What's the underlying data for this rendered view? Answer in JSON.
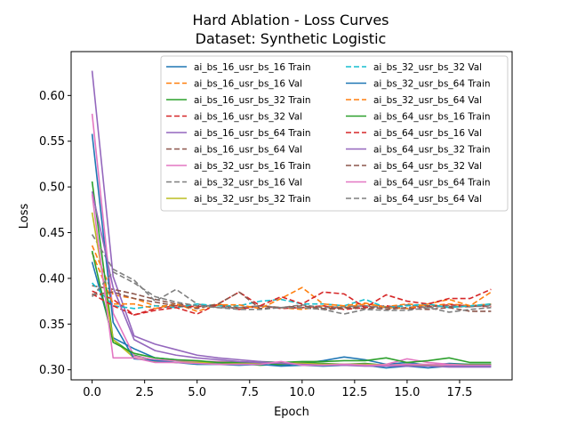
{
  "chart_data": {
    "type": "line",
    "title": "Hard Ablation - Loss Curves",
    "subtitle": "Dataset: Synthetic Logistic",
    "xlabel": "Epoch",
    "ylabel": "Loss",
    "xlim": [
      -1,
      20
    ],
    "ylim": [
      0.289,
      0.648
    ],
    "xticks": [
      0.0,
      2.5,
      5.0,
      7.5,
      10.0,
      12.5,
      15.0,
      17.5
    ],
    "xtick_labels": [
      "0.0",
      "2.5",
      "5.0",
      "7.5",
      "10.0",
      "12.5",
      "15.0",
      "17.5"
    ],
    "yticks": [
      0.3,
      0.35,
      0.4,
      0.45,
      0.5,
      0.55,
      0.6
    ],
    "ytick_labels": [
      "0.30",
      "0.35",
      "0.40",
      "0.45",
      "0.50",
      "0.55",
      "0.60"
    ],
    "grid": false,
    "legend_position": "top-right",
    "x": [
      0,
      1,
      2,
      3,
      4,
      5,
      6,
      7,
      8,
      9,
      10,
      11,
      12,
      13,
      14,
      15,
      16,
      17,
      18,
      19
    ],
    "series": [
      {
        "name": "ai_bs_16_usr_bs_16 Train",
        "color": "#1f77b4",
        "dash": "solid",
        "values": [
          0.418,
          0.335,
          0.323,
          0.313,
          0.311,
          0.307,
          0.308,
          0.306,
          0.309,
          0.305,
          0.307,
          0.31,
          0.314,
          0.311,
          0.306,
          0.308,
          0.305,
          0.307,
          0.306,
          0.306
        ]
      },
      {
        "name": "ai_bs_16_usr_bs_16 Val",
        "color": "#ff7f0e",
        "dash": "dashed",
        "values": [
          0.436,
          0.382,
          0.378,
          0.37,
          0.37,
          0.368,
          0.372,
          0.367,
          0.37,
          0.368,
          0.366,
          0.37,
          0.368,
          0.372,
          0.369,
          0.372,
          0.37,
          0.372,
          0.37,
          0.372
        ]
      },
      {
        "name": "ai_bs_16_usr_bs_32 Train",
        "color": "#2ca02c",
        "dash": "solid",
        "values": [
          0.506,
          0.333,
          0.316,
          0.31,
          0.308,
          0.308,
          0.306,
          0.307,
          0.305,
          0.306,
          0.308,
          0.307,
          0.306,
          0.307,
          0.305,
          0.306,
          0.305,
          0.306,
          0.306,
          0.306
        ]
      },
      {
        "name": "ai_bs_16_usr_bs_32 Val",
        "color": "#d62728",
        "dash": "dashed",
        "values": [
          0.386,
          0.377,
          0.36,
          0.367,
          0.37,
          0.369,
          0.371,
          0.366,
          0.37,
          0.367,
          0.368,
          0.37,
          0.366,
          0.368,
          0.37,
          0.367,
          0.369,
          0.371,
          0.37,
          0.369
        ]
      },
      {
        "name": "ai_bs_16_usr_bs_64 Train",
        "color": "#9467bd",
        "dash": "solid",
        "values": [
          0.627,
          0.402,
          0.337,
          0.328,
          0.322,
          0.316,
          0.313,
          0.311,
          0.309,
          0.308,
          0.307,
          0.306,
          0.306,
          0.306,
          0.305,
          0.305,
          0.305,
          0.305,
          0.305,
          0.305
        ]
      },
      {
        "name": "ai_bs_16_usr_bs_64 Val",
        "color": "#8c564b",
        "dash": "dashed",
        "values": [
          0.392,
          0.388,
          0.383,
          0.377,
          0.372,
          0.37,
          0.37,
          0.368,
          0.37,
          0.368,
          0.368,
          0.366,
          0.367,
          0.37,
          0.366,
          0.368,
          0.37,
          0.369,
          0.369,
          0.371
        ]
      },
      {
        "name": "ai_bs_32_usr_bs_16 Train",
        "color": "#e377c2",
        "dash": "solid",
        "values": [
          0.58,
          0.362,
          0.315,
          0.311,
          0.31,
          0.309,
          0.309,
          0.308,
          0.307,
          0.308,
          0.306,
          0.305,
          0.305,
          0.305,
          0.306,
          0.312,
          0.308,
          0.306,
          0.305,
          0.305
        ]
      },
      {
        "name": "ai_bs_32_usr_bs_16 Val",
        "color": "#7f7f7f",
        "dash": "dashed",
        "values": [
          0.448,
          0.41,
          0.398,
          0.375,
          0.388,
          0.372,
          0.368,
          0.368,
          0.37,
          0.368,
          0.371,
          0.368,
          0.369,
          0.37,
          0.368,
          0.371,
          0.368,
          0.37,
          0.369,
          0.37
        ]
      },
      {
        "name": "ai_bs_32_usr_bs_32 Train",
        "color": "#bcbd22",
        "dash": "solid",
        "values": [
          0.472,
          0.333,
          0.313,
          0.309,
          0.308,
          0.308,
          0.308,
          0.307,
          0.307,
          0.308,
          0.307,
          0.306,
          0.306,
          0.306,
          0.305,
          0.306,
          0.305,
          0.305,
          0.305,
          0.305
        ]
      },
      {
        "name": "ai_bs_32_usr_bs_32 Val",
        "color": "#17becf",
        "dash": "dashed",
        "values": [
          0.395,
          0.37,
          0.367,
          0.37,
          0.368,
          0.372,
          0.37,
          0.37,
          0.375,
          0.377,
          0.372,
          0.372,
          0.37,
          0.377,
          0.368,
          0.37,
          0.372,
          0.368,
          0.37,
          0.372
        ]
      },
      {
        "name": "ai_bs_32_usr_bs_64 Train",
        "color": "#1f77b4",
        "dash": "solid",
        "values": [
          0.558,
          0.352,
          0.312,
          0.31,
          0.308,
          0.306,
          0.306,
          0.305,
          0.306,
          0.304,
          0.305,
          0.304,
          0.305,
          0.305,
          0.302,
          0.304,
          0.302,
          0.304,
          0.304,
          0.304
        ]
      },
      {
        "name": "ai_bs_32_usr_bs_64 Val",
        "color": "#ff7f0e",
        "dash": "dashed",
        "values": [
          0.428,
          0.372,
          0.372,
          0.367,
          0.372,
          0.364,
          0.371,
          0.371,
          0.367,
          0.378,
          0.39,
          0.372,
          0.37,
          0.373,
          0.368,
          0.367,
          0.372,
          0.377,
          0.37,
          0.385
        ]
      },
      {
        "name": "ai_bs_64_usr_bs_16 Train",
        "color": "#2ca02c",
        "dash": "solid",
        "values": [
          0.43,
          0.33,
          0.318,
          0.313,
          0.311,
          0.31,
          0.308,
          0.308,
          0.308,
          0.308,
          0.309,
          0.309,
          0.31,
          0.31,
          0.313,
          0.308,
          0.31,
          0.313,
          0.308,
          0.308
        ]
      },
      {
        "name": "ai_bs_64_usr_bs_16 Val",
        "color": "#d62728",
        "dash": "dashed",
        "values": [
          0.383,
          0.37,
          0.36,
          0.365,
          0.368,
          0.361,
          0.372,
          0.385,
          0.37,
          0.38,
          0.372,
          0.385,
          0.383,
          0.368,
          0.382,
          0.375,
          0.372,
          0.378,
          0.378,
          0.388
        ]
      },
      {
        "name": "ai_bs_64_usr_bs_32 Train",
        "color": "#9467bd",
        "dash": "solid",
        "values": [
          0.495,
          0.39,
          0.333,
          0.321,
          0.316,
          0.313,
          0.311,
          0.309,
          0.308,
          0.307,
          0.306,
          0.305,
          0.305,
          0.304,
          0.304,
          0.304,
          0.304,
          0.303,
          0.303,
          0.303
        ]
      },
      {
        "name": "ai_bs_64_usr_bs_32 Val",
        "color": "#8c564b",
        "dash": "dashed",
        "values": [
          0.382,
          0.385,
          0.378,
          0.374,
          0.37,
          0.367,
          0.372,
          0.385,
          0.367,
          0.368,
          0.37,
          0.367,
          0.368,
          0.367,
          0.368,
          0.367,
          0.366,
          0.368,
          0.364,
          0.364
        ]
      },
      {
        "name": "ai_bs_64_usr_bs_64 Train",
        "color": "#e377c2",
        "dash": "solid",
        "values": [
          0.492,
          0.313,
          0.313,
          0.308,
          0.308,
          0.307,
          0.306,
          0.306,
          0.306,
          0.309,
          0.305,
          0.305,
          0.306,
          0.305,
          0.305,
          0.306,
          0.306,
          0.305,
          0.305,
          0.305
        ]
      },
      {
        "name": "ai_bs_64_usr_bs_64 Val",
        "color": "#7f7f7f",
        "dash": "dashed",
        "values": [
          0.38,
          0.407,
          0.395,
          0.38,
          0.374,
          0.37,
          0.368,
          0.366,
          0.366,
          0.368,
          0.368,
          0.366,
          0.361,
          0.366,
          0.365,
          0.365,
          0.368,
          0.363,
          0.366,
          0.368
        ]
      }
    ]
  }
}
